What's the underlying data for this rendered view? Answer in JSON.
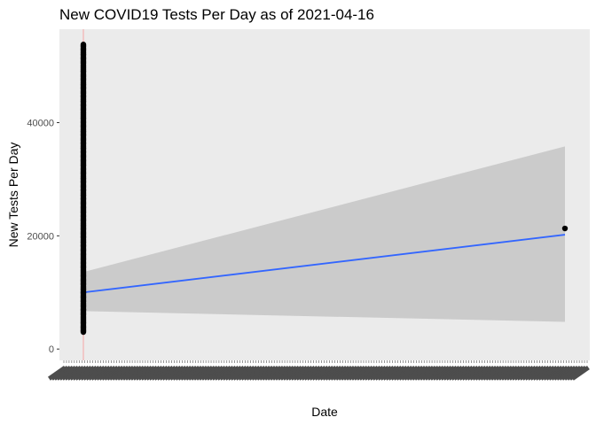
{
  "chart_data": {
    "type": "scatter",
    "title": "New COVID19 Tests Per Day as of 2021-04-16",
    "xlabel": "Date",
    "ylabel": "New Tests Per Day",
    "y_ticks": [
      0,
      20000,
      40000
    ],
    "y_tick_labels": [
      "0",
      "20000",
      "40000"
    ],
    "ylim": [
      -2000,
      56500
    ],
    "x_tick_labels_illegible": true,
    "grid": false,
    "legend": "none",
    "colors": {
      "panel": "#ebebeb",
      "points": "#000000",
      "trend_line": "#3366ff",
      "confidence_band": "#cbcbcb",
      "vline": "#f4a6a6",
      "tick_labels": "#4d4d4d"
    },
    "series": [
      {
        "values_cluster_min": 3000,
        "values_cluster_max": 53800,
        "outlier_value": 21300
      }
    ],
    "trend": {
      "method": "lm",
      "start_value": 10000,
      "end_value": 20200,
      "band_start": [
        6700,
        13600
      ],
      "band_end": [
        4800,
        35800
      ]
    }
  }
}
